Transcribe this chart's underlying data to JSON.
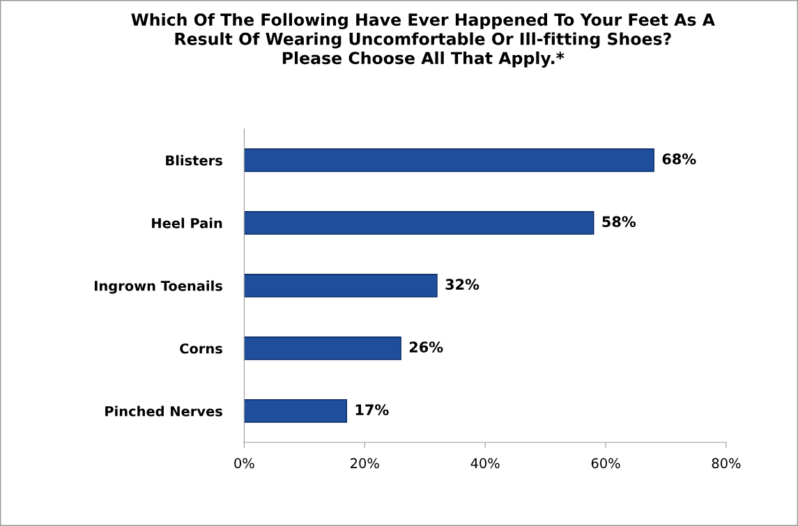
{
  "chart_data": {
    "type": "bar",
    "orientation": "horizontal",
    "title": "Which Of The Following Have Ever Happened To Your Feet As A\nResult Of Wearing Uncomfortable Or Ill-fitting Shoes?\nPlease Choose All That Apply.*",
    "categories": [
      "Blisters",
      "Heel Pain",
      "Ingrown Toenails",
      "Corns",
      "Pinched Nerves"
    ],
    "values": [
      68,
      58,
      32,
      26,
      17
    ],
    "value_labels": [
      "68%",
      "58%",
      "32%",
      "26%",
      "17%"
    ],
    "color": "#1f4e9c",
    "xlim": [
      0,
      80
    ],
    "xticks": [
      {
        "value": 0,
        "label": "0%"
      },
      {
        "value": 20,
        "label": "20%"
      },
      {
        "value": 40,
        "label": "40%"
      },
      {
        "value": 60,
        "label": "60%"
      },
      {
        "value": 80,
        "label": "80%"
      }
    ],
    "grid": false,
    "legend": false
  }
}
